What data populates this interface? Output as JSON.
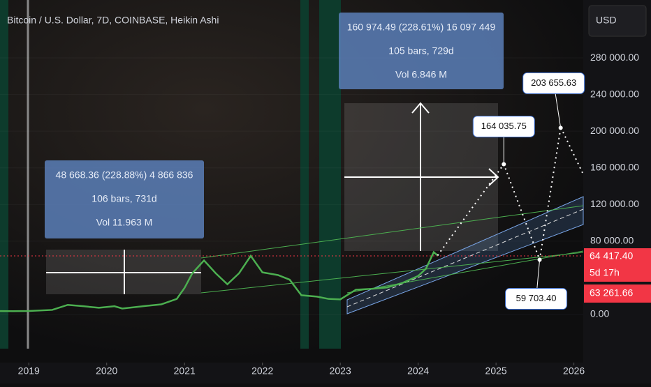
{
  "chart_data": {
    "type": "line",
    "title": "Bitcoin / U.S. Dollar, 7D, COINBASE, Heikin Ashi",
    "currency": "USD",
    "x": [
      2018.63,
      2018.8,
      2019.0,
      2019.3,
      2019.5,
      2019.7,
      2019.9,
      2020.1,
      2020.2,
      2020.5,
      2020.7,
      2020.9,
      2021.0,
      2021.1,
      2021.25,
      2021.4,
      2021.55,
      2021.7,
      2021.85,
      2022.0,
      2022.2,
      2022.35,
      2022.5,
      2022.7,
      2022.85,
      2023.0,
      2023.2,
      2023.4,
      2023.6,
      2023.8,
      2024.0,
      2024.1,
      2024.2,
      2024.25
    ],
    "series": [
      {
        "color": "#4caf50",
        "values": [
          3700,
          3600,
          3800,
          5000,
          10500,
          9000,
          7300,
          9000,
          6500,
          9300,
          11000,
          17000,
          29000,
          45000,
          59000,
          45000,
          33000,
          45000,
          64000,
          46000,
          43000,
          38000,
          21000,
          19500,
          17000,
          16500,
          27000,
          28000,
          29500,
          34500,
          42000,
          50000,
          68000,
          64400
        ]
      }
    ],
    "xlim": [
      2018.63,
      2026.12
    ],
    "xticks": [
      2019,
      2020,
      2021,
      2022,
      2023,
      2024,
      2025,
      2026
    ],
    "ylim": [
      -52500,
      343200
    ],
    "yticks": [
      {
        "value": 0,
        "label": "0.00"
      },
      {
        "value": 80000,
        "label": "80 000.00"
      },
      {
        "value": 120000,
        "label": "120 000.00"
      },
      {
        "value": 160000,
        "label": "160 000.00"
      },
      {
        "value": 200000,
        "label": "200 000.00"
      },
      {
        "value": 240000,
        "label": "240 000.00"
      },
      {
        "value": 280000,
        "label": "280 000.00"
      }
    ],
    "price_labels": {
      "last": {
        "value": 64417.4,
        "label": "64 417.40"
      },
      "countdown": "5d 17h",
      "low": {
        "value": 63261.66,
        "label": "63 261.66"
      }
    },
    "measures": [
      {
        "lines": [
          "48 668.36 (228.88%) 4 866 836",
          "106 bars, 731d",
          "Vol 11.963 M"
        ]
      },
      {
        "lines": [
          "160 974.49 (228.61%) 16 097 449",
          "105 bars, 729d",
          "Vol 6.846 M"
        ]
      }
    ],
    "projections": [
      {
        "x": 2025.1,
        "value": 164035.75,
        "label": "164 035.75"
      },
      {
        "x": 2025.56,
        "value": 59703.4,
        "label": "59 703.40"
      },
      {
        "x": 2025.83,
        "value": 203655.63,
        "label": "203 655.63"
      }
    ]
  }
}
